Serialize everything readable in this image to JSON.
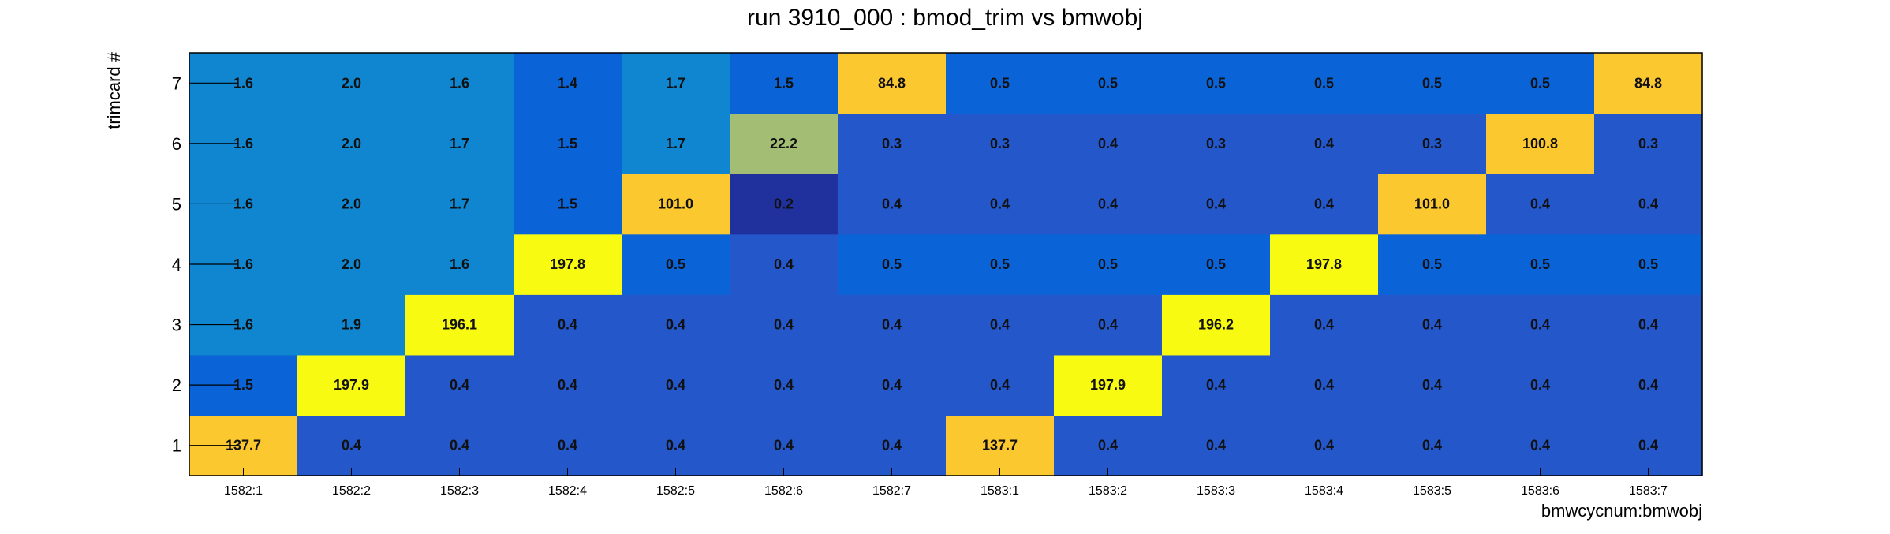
{
  "chart_data": {
    "type": "heatmap",
    "title": "run 3910_000 : bmod_trim vs bmwobj",
    "xlabel": "bmwcycnum:bmwobj",
    "ylabel": "trimcard #",
    "x_categories": [
      "1582:1",
      "1582:2",
      "1582:3",
      "1582:4",
      "1582:5",
      "1582:6",
      "1582:7",
      "1583:1",
      "1583:2",
      "1583:3",
      "1583:4",
      "1583:5",
      "1583:6",
      "1583:7"
    ],
    "y_categories": [
      "1",
      "2",
      "3",
      "4",
      "5",
      "6",
      "7"
    ],
    "values": [
      [
        "137.7",
        "0.4",
        "0.4",
        "0.4",
        "0.4",
        "0.4",
        "0.4",
        "137.7",
        "0.4",
        "0.4",
        "0.4",
        "0.4",
        "0.4",
        "0.4"
      ],
      [
        "1.5",
        "197.9",
        "0.4",
        "0.4",
        "0.4",
        "0.4",
        "0.4",
        "0.4",
        "197.9",
        "0.4",
        "0.4",
        "0.4",
        "0.4",
        "0.4"
      ],
      [
        "1.6",
        "1.9",
        "196.1",
        "0.4",
        "0.4",
        "0.4",
        "0.4",
        "0.4",
        "0.4",
        "196.2",
        "0.4",
        "0.4",
        "0.4",
        "0.4"
      ],
      [
        "1.6",
        "2.0",
        "1.6",
        "197.8",
        "0.5",
        "0.4",
        "0.5",
        "0.5",
        "0.5",
        "0.5",
        "197.8",
        "0.5",
        "0.5",
        "0.5"
      ],
      [
        "1.6",
        "2.0",
        "1.7",
        "1.5",
        "101.0",
        "0.2",
        "0.4",
        "0.4",
        "0.4",
        "0.4",
        "0.4",
        "101.0",
        "0.4",
        "0.4"
      ],
      [
        "1.6",
        "2.0",
        "1.7",
        "1.5",
        "1.7",
        "22.2",
        "0.3",
        "0.3",
        "0.4",
        "0.3",
        "0.4",
        "0.3",
        "100.8",
        "0.3"
      ],
      [
        "1.6",
        "2.0",
        "1.6",
        "1.4",
        "1.7",
        "1.5",
        "84.8",
        "0.5",
        "0.5",
        "0.5",
        "0.5",
        "0.5",
        "0.5",
        "84.8"
      ]
    ],
    "zlim": [
      0,
      200
    ],
    "grid": false,
    "legend": "none",
    "colormap": [
      "#20319e",
      "#2457ca",
      "#0b63d8",
      "#0f86cf",
      "#03a0c9",
      "#19b1b6",
      "#5cbe9a",
      "#a3be74",
      "#dcba4c",
      "#fcc830",
      "#f8e01d",
      "#f9fa12"
    ]
  }
}
